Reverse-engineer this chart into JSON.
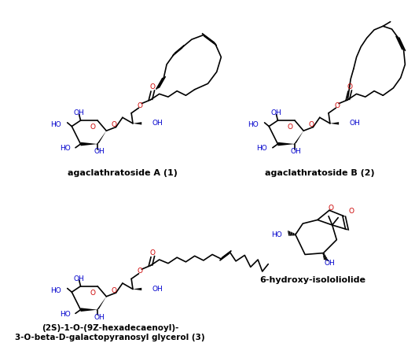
{
  "background_color": "#ffffff",
  "label1": "agaclathratoside A (1)",
  "label2": "agaclathratoside B (2)",
  "label3_line1": "(2S)-1-O-(9Z-hexadecaenoyl)-",
  "label3_line2": "3-O-beta-D-galactopyranosyl glycerol (3)",
  "label4": "6-hydroxy-isololiolide",
  "figsize": [
    5.28,
    4.55
  ],
  "dpi": 100
}
